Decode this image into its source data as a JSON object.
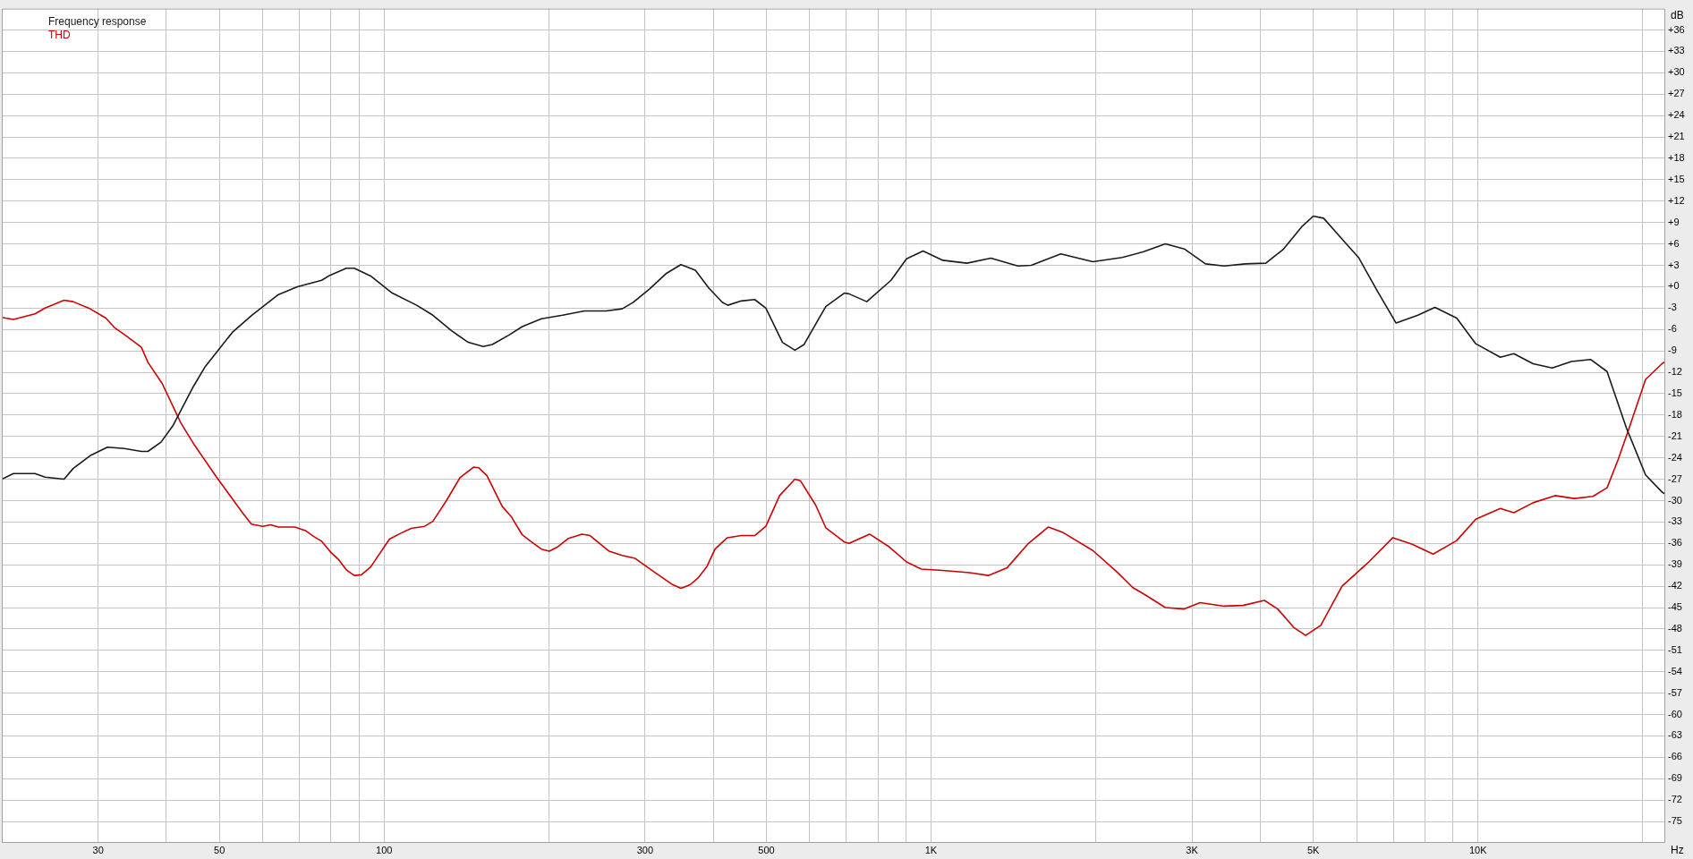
{
  "chart_data": {
    "type": "line",
    "xlabel": "Hz",
    "ylabel": "dB",
    "log": "x",
    "grid": true,
    "legend": "top left",
    "marker": "none",
    "line_style": "solid",
    "xlim": [
      20,
      22000
    ],
    "ylim": [
      -78,
      39
    ],
    "xticks": [
      {
        "value": 20,
        "label": null
      },
      30,
      {
        "value": 40,
        "label": null
      },
      50,
      {
        "value": 60,
        "label": null
      },
      {
        "value": 70,
        "label": null
      },
      {
        "value": 80,
        "label": null
      },
      {
        "value": 90,
        "label": null
      },
      100,
      {
        "value": 200,
        "label": null
      },
      300,
      {
        "value": 400,
        "label": null
      },
      500,
      {
        "value": 600,
        "label": null
      },
      {
        "value": 700,
        "label": null
      },
      {
        "value": 800,
        "label": null
      },
      {
        "value": 900,
        "label": null
      },
      {
        "value": 1000,
        "label": "1K"
      },
      {
        "value": 2000,
        "label": null
      },
      {
        "value": 3000,
        "label": "3K"
      },
      {
        "value": 4000,
        "label": null
      },
      {
        "value": 5000,
        "label": "5K"
      },
      {
        "value": 6000,
        "label": null
      },
      {
        "value": 7000,
        "label": null
      },
      {
        "value": 8000,
        "label": null
      },
      {
        "value": 9000,
        "label": null
      },
      {
        "value": 10000,
        "label": "10K"
      },
      {
        "value": 20000,
        "label": null
      }
    ],
    "yticks": [
      {
        "value": 36,
        "label": "+36"
      },
      {
        "value": 33,
        "label": "+33"
      },
      {
        "value": 30,
        "label": "+30"
      },
      {
        "value": 27,
        "label": "+27"
      },
      {
        "value": 24,
        "label": "+24"
      },
      {
        "value": 21,
        "label": "+21"
      },
      {
        "value": 18,
        "label": "+18"
      },
      {
        "value": 15,
        "label": "+15"
      },
      {
        "value": 12,
        "label": "+12"
      },
      {
        "value": 9,
        "label": "+9"
      },
      {
        "value": 6,
        "label": "+6"
      },
      {
        "value": 3,
        "label": "+3"
      },
      {
        "value": 0,
        "label": "+0"
      },
      -3,
      -6,
      -9,
      -12,
      -15,
      -18,
      -21,
      -24,
      -27,
      -30,
      -33,
      -36,
      -39,
      -42,
      -45,
      -48,
      -51,
      -54,
      -57,
      -60,
      -63,
      -66,
      -69,
      -72,
      -75
    ],
    "series": [
      {
        "name": "Frequency response",
        "color": "#1a1a1a",
        "x": [
          20,
          21,
          23,
          24,
          26,
          27,
          29,
          31.2,
          33.5,
          36,
          37,
          39.1,
          41.1,
          44.8,
          47.1,
          52.8,
          57.3,
          64.1,
          69.4,
          76.9,
          79.6,
          85.3,
          88.2,
          94.5,
          103.5,
          114.7,
          122.8,
          133,
          142.5,
          151.8,
          157.7,
          169,
          178.9,
          193.9,
          212,
          232.4,
          254.6,
          272.5,
          285.4,
          305.9,
          327.3,
          348.8,
          370.8,
          392.5,
          415.6,
          425,
          449.8,
          476,
          498.9,
          535,
          563.8,
          586,
          642,
          694,
          708,
          763,
          845,
          902,
          967,
          1051,
          1163,
          1287,
          1441,
          1525,
          1727,
          1976,
          2235,
          2448,
          2682,
          2904,
          3175,
          3434,
          3760,
          4093,
          4401,
          4762,
          5000,
          5221,
          5777,
          6048,
          6545,
          7085,
          7766,
          8342,
          9144,
          9908,
          10987,
          11630,
          12611,
          13670,
          14820,
          16060,
          17220,
          18680,
          20250,
          21700,
          21900
        ],
        "values": [
          -27,
          -26.2,
          -26.2,
          -26.7,
          -27,
          -25.5,
          -23.7,
          -22.5,
          -22.7,
          -23.1,
          -23.1,
          -21.8,
          -19.5,
          -14,
          -11.2,
          -6.4,
          -4,
          -1.1,
          0,
          0.9,
          1.6,
          2.6,
          2.6,
          1.5,
          -0.9,
          -2.6,
          -4,
          -6.2,
          -7.8,
          -8.4,
          -8.1,
          -6.8,
          -5.6,
          -4.5,
          -4,
          -3.4,
          -3.4,
          -3.1,
          -2.2,
          -0.3,
          1.8,
          3.1,
          2.3,
          -0.2,
          -2.2,
          -2.6,
          -2,
          -1.8,
          -3,
          -7.8,
          -8.9,
          -8.1,
          -2.8,
          -0.9,
          -1,
          -2.1,
          0.9,
          3.9,
          5,
          3.7,
          3.3,
          4,
          2.9,
          3,
          4.6,
          3.5,
          4.1,
          4.9,
          6,
          5.3,
          3.2,
          2.9,
          3.2,
          3.3,
          5.2,
          8.4,
          9.9,
          9.6,
          5.8,
          4.1,
          -0.6,
          -5.1,
          -4,
          -2.9,
          -4.4,
          -8,
          -9.9,
          -9.4,
          -10.8,
          -11.4,
          -10.5,
          -10.2,
          -11.9,
          -19.8,
          -26.4,
          -28.8,
          -29
        ]
      },
      {
        "name": "THD",
        "color": "#cc0000",
        "x": [
          20,
          21,
          23,
          24,
          26,
          27,
          29,
          31,
          32.1,
          33.9,
          36,
          37,
          39.3,
          42.5,
          45,
          49.4,
          55.2,
          57.2,
          60,
          62,
          64.1,
          68.7,
          71.8,
          74.3,
          76.9,
          79.6,
          82.4,
          85.3,
          88.2,
          90.9,
          94.5,
          102.3,
          107.1,
          112.1,
          118.6,
          122.8,
          130,
          137.6,
          145.7,
          149,
          154.2,
          164.4,
          171,
          178.9,
          185.3,
          193.9,
          200.5,
          207.5,
          217.3,
          230,
          238,
          257.9,
          272.5,
          287.8,
          312.9,
          335.4,
          348.8,
          362.6,
          375.5,
          388.9,
          402.8,
          424.2,
          449.8,
          476,
          498.9,
          528.6,
          563.8,
          576.9,
          615,
          642,
          694,
          708,
          772,
          839,
          902,
          960,
          1051,
          1176,
          1273,
          1378,
          1507,
          1639,
          1746,
          1976,
          2187,
          2339,
          2474,
          2682,
          2904,
          3105,
          3434,
          3717,
          4069,
          4304,
          4606,
          4842,
          5159,
          5642,
          6316,
          6988,
          7563,
          8281,
          9144,
          9908,
          10987,
          11630,
          12611,
          13830,
          15000,
          16220,
          17220,
          18030,
          18900,
          20250,
          21700,
          21900
        ],
        "values": [
          -4.3,
          -4.6,
          -3.8,
          -3,
          -1.9,
          -2.1,
          -3.1,
          -4.4,
          -5.7,
          -7,
          -8.5,
          -10.6,
          -13.6,
          -19.1,
          -22.2,
          -26.7,
          -31.8,
          -33.3,
          -33.6,
          -33.4,
          -33.7,
          -33.7,
          -34.2,
          -35,
          -35.7,
          -37.1,
          -38.2,
          -39.7,
          -40.5,
          -40.4,
          -39.3,
          -35.4,
          -34.6,
          -33.9,
          -33.6,
          -32.9,
          -30,
          -26.8,
          -25.3,
          -25.4,
          -26.5,
          -30.8,
          -32.3,
          -34.8,
          -35.7,
          -36.8,
          -37.1,
          -36.5,
          -35.3,
          -34.7,
          -34.9,
          -37.1,
          -37.7,
          -38.1,
          -40.1,
          -41.7,
          -42.3,
          -41.8,
          -40.8,
          -39.3,
          -36.8,
          -35.2,
          -34.9,
          -34.9,
          -33.6,
          -29.3,
          -27,
          -27.2,
          -30.6,
          -33.8,
          -35.8,
          -36,
          -34.7,
          -36.5,
          -38.6,
          -39.6,
          -39.8,
          -40.1,
          -40.5,
          -39.4,
          -36,
          -33.7,
          -34.5,
          -37,
          -40,
          -42.2,
          -43.3,
          -45,
          -45.2,
          -44.3,
          -44.8,
          -44.7,
          -44,
          -45.2,
          -47.8,
          -48.9,
          -47.5,
          -42,
          -38.6,
          -35.2,
          -36.1,
          -37.5,
          -35.6,
          -32.6,
          -31.1,
          -31.7,
          -30.3,
          -29.3,
          -29.7,
          -29.4,
          -28.2,
          -24.3,
          -19.8,
          -13,
          -10.8,
          -10.6
        ]
      }
    ]
  }
}
